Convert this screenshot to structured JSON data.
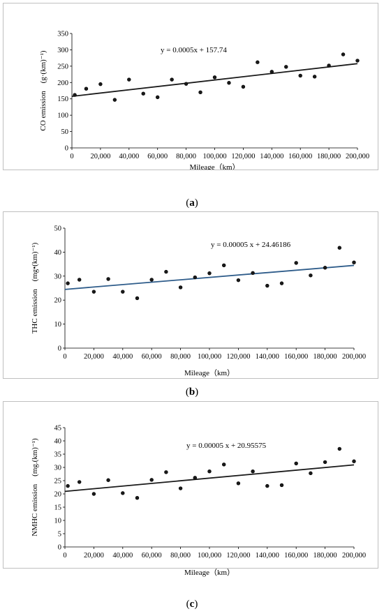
{
  "chart_data": [
    {
      "type": "scatter",
      "panel_label": "a",
      "xlabel": "Mileage（km）",
      "ylabel": "CO emission　(g·(km)⁻¹)",
      "equation": "y = 0.0005x + 157.74",
      "trend": {
        "slope": 0.0005,
        "intercept": 157.74
      },
      "xlim": [
        0,
        200000
      ],
      "ylim": [
        0,
        350
      ],
      "xticks": [
        0,
        20000,
        40000,
        60000,
        80000,
        100000,
        120000,
        140000,
        160000,
        180000,
        200000
      ],
      "xtick_labels": [
        "0",
        "20,000",
        "40,000",
        "60,000",
        "80,000",
        "100,000",
        "120,000",
        "140,000",
        "160,000",
        "180,000",
        "200,000"
      ],
      "yticks": [
        0,
        50,
        100,
        150,
        200,
        250,
        300,
        350
      ],
      "ytick_labels": [
        "0",
        "50",
        "100",
        "150",
        "200",
        "250",
        "300",
        "350"
      ],
      "grid": false,
      "trend_color": "#1a1a1a",
      "x": [
        2000,
        10000,
        20000,
        30000,
        40000,
        50000,
        60000,
        70000,
        80000,
        90000,
        100000,
        110000,
        120000,
        130000,
        140000,
        150000,
        160000,
        170000,
        180000,
        190000,
        200000
      ],
      "y": [
        162,
        181,
        195,
        147,
        209,
        166,
        155,
        209,
        196,
        170,
        216,
        199,
        187,
        262,
        233,
        248,
        221,
        218,
        252,
        286,
        267
      ]
    },
    {
      "type": "scatter",
      "panel_label": "b",
      "xlabel": "Mileage（km）",
      "ylabel": "THC emission　(mg•(km)⁻¹)",
      "equation": "y = 0.00005 x + 24.46186",
      "trend": {
        "slope": 5e-05,
        "intercept": 24.46186
      },
      "xlim": [
        0,
        200000
      ],
      "ylim": [
        0,
        50
      ],
      "xticks": [
        0,
        20000,
        40000,
        60000,
        80000,
        100000,
        120000,
        140000,
        160000,
        180000,
        200000
      ],
      "xtick_labels": [
        "0",
        "20,000",
        "40,000",
        "60,000",
        "80,000",
        "100,000",
        "120,000",
        "140,000",
        "160,000",
        "180,000",
        "200,000"
      ],
      "yticks": [
        0,
        10,
        20,
        30,
        40,
        50
      ],
      "ytick_labels": [
        "0",
        "10",
        "20",
        "30",
        "40",
        "50"
      ],
      "grid": false,
      "trend_color": "#2e5c8a",
      "x": [
        2000,
        10000,
        20000,
        30000,
        40000,
        50000,
        60000,
        70000,
        80000,
        90000,
        100000,
        110000,
        120000,
        130000,
        140000,
        150000,
        160000,
        170000,
        180000,
        190000,
        200000
      ],
      "y": [
        27,
        28.5,
        23.5,
        28.8,
        23.5,
        20.8,
        28.5,
        31.8,
        25.3,
        29.5,
        31.2,
        34.5,
        28.3,
        31.3,
        26,
        27,
        35.5,
        30.3,
        33.5,
        41.8,
        35.7
      ]
    },
    {
      "type": "scatter",
      "panel_label": "c",
      "xlabel": "Mileage（km）",
      "ylabel": "NMHC emission　(mg.(km)⁻¹)",
      "equation": "y = 0.00005 x + 20.95575",
      "trend": {
        "slope": 5e-05,
        "intercept": 20.95575
      },
      "xlim": [
        0,
        200000
      ],
      "ylim": [
        0,
        45
      ],
      "xticks": [
        0,
        20000,
        40000,
        60000,
        80000,
        100000,
        120000,
        140000,
        160000,
        180000,
        200000
      ],
      "xtick_labels": [
        "0",
        "20,000",
        "40,000",
        "60,000",
        "80,000",
        "100,000",
        "120,000",
        "140,000",
        "160,000",
        "180,000",
        "200,000"
      ],
      "yticks": [
        0,
        5,
        10,
        15,
        20,
        25,
        30,
        35,
        40,
        45
      ],
      "ytick_labels": [
        "0",
        "5",
        "10",
        "15",
        "20",
        "25",
        "30",
        "35",
        "40",
        "45"
      ],
      "grid": false,
      "trend_color": "#1a1a1a",
      "x": [
        2000,
        10000,
        20000,
        30000,
        40000,
        50000,
        60000,
        70000,
        80000,
        90000,
        100000,
        110000,
        120000,
        130000,
        140000,
        150000,
        160000,
        170000,
        180000,
        190000,
        200000
      ],
      "y": [
        23,
        24.5,
        20,
        25.2,
        20.3,
        18.5,
        25.3,
        28.2,
        22.1,
        26.1,
        28.5,
        31.1,
        24,
        28.5,
        23,
        23.3,
        31.5,
        27.8,
        32,
        37,
        32.3
      ]
    }
  ]
}
